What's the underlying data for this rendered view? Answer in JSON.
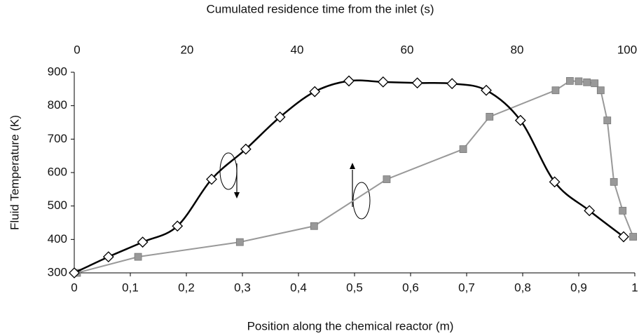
{
  "chart_data": {
    "type": "line",
    "title": "Cumulated residence time from the inlet (s)",
    "x_label": "Position along the chemical reactor (m)",
    "y_label": "Fluid Temperature (K)",
    "xlim": [
      0,
      1
    ],
    "xticks": [
      0,
      {
        "value": 0.1,
        "label": "0,1"
      },
      {
        "value": 0.2,
        "label": "0,2"
      },
      {
        "value": 0.3,
        "label": "0,3"
      },
      {
        "value": 0.4,
        "label": "0,4"
      },
      {
        "value": 0.5,
        "label": "0,5"
      },
      {
        "value": 0.6,
        "label": "0,6"
      },
      {
        "value": 0.7,
        "label": "0,7"
      },
      {
        "value": 0.8,
        "label": "0,8"
      },
      {
        "value": 0.9,
        "label": "0,9"
      },
      1
    ],
    "x2lim": [
      -0.5,
      101.4
    ],
    "x2ticks": [
      0,
      20,
      40,
      60,
      80,
      100
    ],
    "ylim": [
      300,
      900
    ],
    "yticks": [
      300,
      400,
      500,
      600,
      700,
      800,
      900
    ],
    "grid": false,
    "series": [
      {
        "color": "#000000",
        "marker": "diamond",
        "smooth": true,
        "axis": "x",
        "x": [
          0,
          0.061,
          0.122,
          0.184,
          0.245,
          0.306,
          0.367,
          0.429,
          0.49,
          0.551,
          0.612,
          0.674,
          0.735,
          0.796,
          0.857,
          0.919,
          0.98
        ],
        "values": [
          300,
          348,
          392,
          440,
          580,
          670,
          766,
          842,
          874,
          871,
          868,
          866,
          846,
          756,
          572,
          486,
          408
        ]
      },
      {
        "color": "#999999",
        "marker": "square",
        "smooth": false,
        "axis": "x2",
        "x": [
          0,
          11.1,
          29.6,
          43.1,
          56.3,
          70.2,
          75.0,
          87.0,
          89.6,
          91.2,
          92.7,
          94.1,
          95.2,
          96.4,
          97.6,
          99.2,
          101.1
        ],
        "values": [
          300,
          348,
          392,
          440,
          580,
          670,
          767,
          846,
          874,
          873,
          870,
          867,
          846,
          756,
          572,
          486,
          408
        ]
      }
    ]
  }
}
